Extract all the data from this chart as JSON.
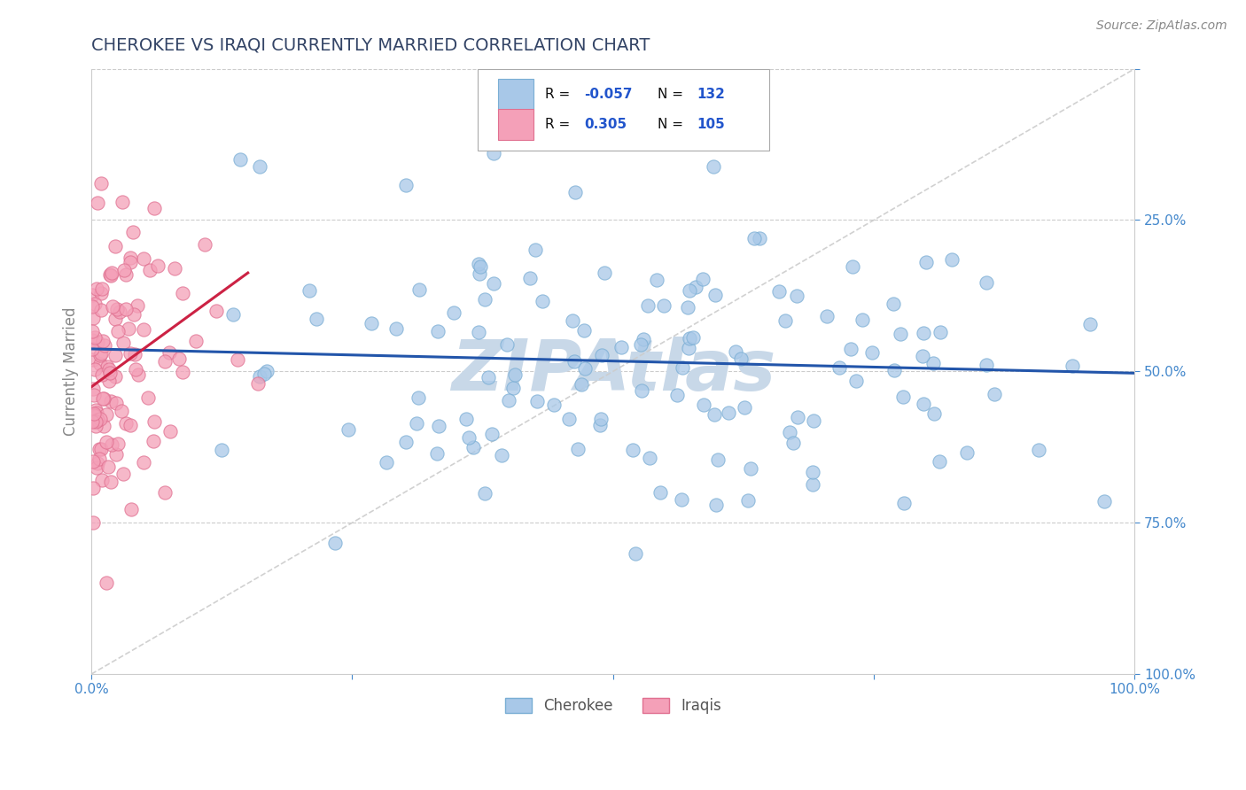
{
  "title": "CHEROKEE VS IRAQI CURRENTLY MARRIED CORRELATION CHART",
  "source_text": "Source: ZipAtlas.com",
  "ylabel": "Currently Married",
  "xlim": [
    0.0,
    1.0
  ],
  "ylim": [
    0.0,
    1.0
  ],
  "xticks": [
    0.0,
    0.25,
    0.5,
    0.75,
    1.0
  ],
  "yticks": [
    0.0,
    0.25,
    0.5,
    0.75,
    1.0
  ],
  "xticklabels": [
    "0.0%",
    "",
    "",
    "",
    "100.0%"
  ],
  "yticklabels_right": [
    "100.0%",
    "75.0%",
    "50.0%",
    "25.0%",
    ""
  ],
  "cherokee_color": "#a8c8e8",
  "iraqi_color": "#f4a0b8",
  "cherokee_edge": "#7aaed4",
  "iraqi_edge": "#e07090",
  "cherokee_line_color": "#2255aa",
  "iraqi_line_color": "#cc2244",
  "ref_line_color": "#cccccc",
  "background_color": "#ffffff",
  "watermark_color": "#c8d8e8",
  "R_cherokee": -0.057,
  "N_cherokee": 132,
  "R_iraqi": 0.305,
  "N_iraqi": 105,
  "title_color": "#334466",
  "title_fontsize": 14,
  "axis_label_color": "#888888",
  "tick_color": "#4488cc",
  "grid_color": "#cccccc",
  "legend_R_color": "#2255cc",
  "legend_text_color": "#111111"
}
